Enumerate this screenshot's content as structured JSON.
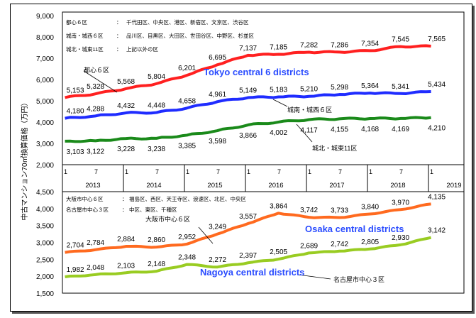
{
  "chart_data": [
    {
      "type": "line",
      "panel": "tokyo",
      "ylim": [
        2000,
        9000
      ],
      "yticks": [
        2000,
        3000,
        4000,
        5000,
        6000,
        7000,
        8000,
        9000
      ],
      "x": [
        "2013-01",
        "2013-07",
        "2014-01",
        "2014-07",
        "2015-01",
        "2015-07",
        "2016-01",
        "2016-07",
        "2017-01",
        "2017-07",
        "2018-01",
        "2018-07",
        "2019-01"
      ],
      "legend_notes": [
        [
          "都心６区",
          "：",
          "千代田区、中央区、港区、新宿区、文京区、渋谷区"
        ],
        [
          "城南・城西６区",
          "：",
          "品川区、目黒区、大田区、世田谷区、中野区、杉並区"
        ],
        [
          "城北・城東11区",
          "：",
          "上記以外の区"
        ]
      ],
      "annotation": "Tokyo central 6 districts",
      "series": [
        {
          "name": "都心６区",
          "color": "#ff2020",
          "values": [
            5153,
            5328,
            5568,
            5804,
            6201,
            6695,
            7137,
            7185,
            7282,
            7286,
            7354,
            7545,
            7565
          ]
        },
        {
          "name": "城南・城西６区",
          "color": "#1f2cff",
          "values": [
            4180,
            4288,
            4432,
            4448,
            4658,
            4961,
            5149,
            5183,
            5210,
            5298,
            5364,
            5341,
            5434
          ]
        },
        {
          "name": "城北・城東11区",
          "color": "#1a8a1a",
          "values": [
            3103,
            3122,
            3228,
            3238,
            3385,
            3598,
            3866,
            4002,
            4117,
            4155,
            4168,
            4169,
            4210
          ]
        }
      ]
    },
    {
      "type": "line",
      "panel": "osaka-nagoya",
      "ylim": [
        1500,
        4500
      ],
      "yticks": [
        1500,
        2000,
        2500,
        3000,
        3500,
        4000,
        4500
      ],
      "x": [
        "2013-01",
        "2013-07",
        "2014-01",
        "2014-07",
        "2015-01",
        "2015-07",
        "2016-01",
        "2016-07",
        "2017-01",
        "2017-07",
        "2018-01",
        "2018-07",
        "2019-01"
      ],
      "legend_notes": [
        [
          "大阪市中心６区",
          "：",
          "福島区、西区、天王寺区、浪速区、北区、中央区"
        ],
        [
          "名古屋市中心３区",
          "：",
          "中区、東区、千種区"
        ]
      ],
      "annotations": [
        "Osaka central districts",
        "Nagoya central districts"
      ],
      "series": [
        {
          "name": "大阪市中心６区",
          "color": "#ff6a1f",
          "values": [
            2704,
            2784,
            2884,
            2860,
            2952,
            3249,
            3557,
            3864,
            3742,
            3733,
            3840,
            3970,
            4135
          ]
        },
        {
          "name": "名古屋市中心３区",
          "color": "#99cc22",
          "values": [
            1982,
            2048,
            2103,
            2148,
            2348,
            2272,
            2397,
            2505,
            2689,
            2742,
            2805,
            2930,
            3142
          ]
        }
      ]
    }
  ],
  "x_axis": {
    "years": [
      "2013",
      "2014",
      "2015",
      "2016",
      "2017",
      "2018",
      "2019"
    ],
    "month_labels": [
      "1",
      "7"
    ]
  },
  "ylabel": "中古マンション70㎡換算価格（万円）"
}
